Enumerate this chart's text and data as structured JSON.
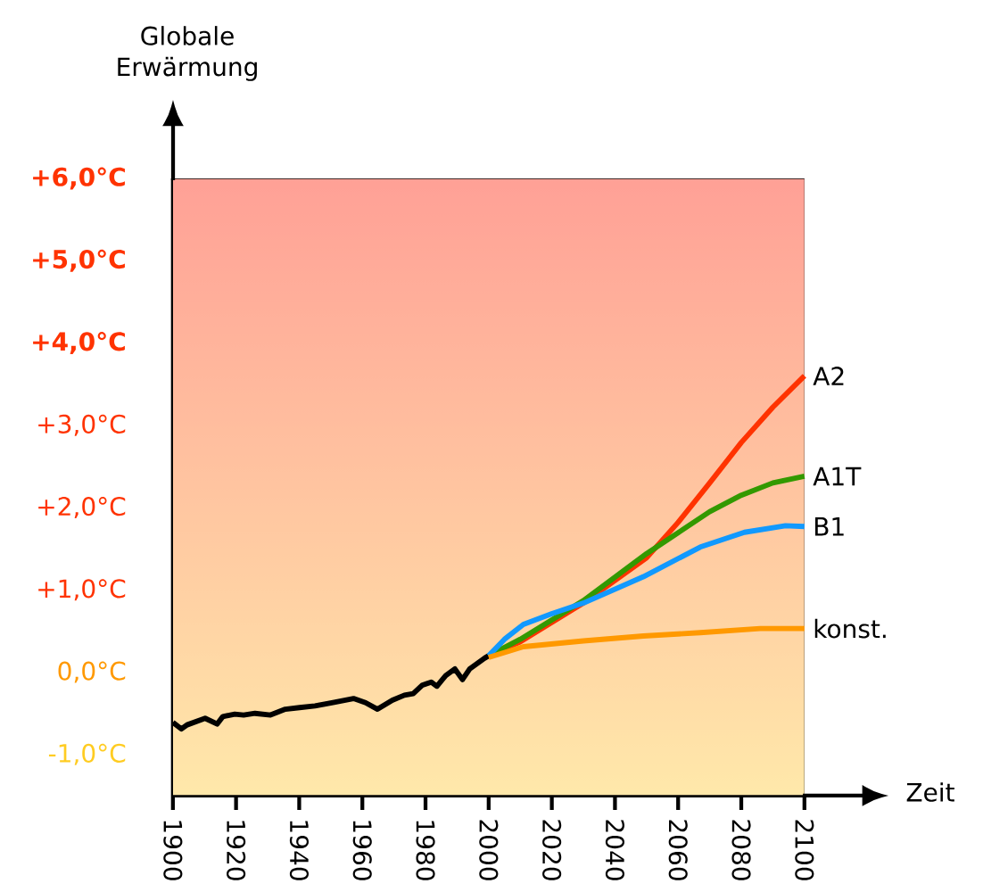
{
  "chart_data": {
    "type": "line",
    "xlabel": "Zeit",
    "ylabel": "Globale Erwärmung",
    "xlim": [
      1900,
      2100
    ],
    "ylim": [
      -1.5,
      6
    ],
    "xticks": [
      1900,
      1920,
      1940,
      1960,
      1980,
      2000,
      2020,
      2040,
      2060,
      2080,
      2100
    ],
    "yticks": [
      {
        "value": -1,
        "label": "-1,0°C"
      },
      {
        "value": 0,
        "label": "0,0°C"
      },
      {
        "value": 1,
        "label": "+1,0°C"
      },
      {
        "value": 2,
        "label": "+2,0°C"
      },
      {
        "value": 3,
        "label": "+3,0°C"
      },
      {
        "value": 4,
        "label": "+4,0°C"
      },
      {
        "value": 5,
        "label": "+5,0°C"
      },
      {
        "value": 6,
        "label": "+6,0°C"
      }
    ],
    "bands": [
      {
        "axis": "y",
        "from": -1.5,
        "to": 6,
        "color": "#ffa096"
      }
    ],
    "series": [
      {
        "color": "#000000",
        "x": [
          1900,
          1902.7,
          1904.5,
          1910.2,
          1914,
          1915.8,
          1919.6,
          1922.4,
          1926,
          1930.9,
          1935.6,
          1940.1,
          1945,
          1950.7,
          1957.2,
          1961,
          1964.8,
          1969.5,
          1973.3,
          1976.1,
          1978.9,
          1981.8,
          1983.6,
          1986.4,
          1989.3,
          1991.7,
          1994,
          1998.7,
          2000
        ],
        "values": [
          -0.61,
          -0.69,
          -0.64,
          -0.56,
          -0.63,
          -0.54,
          -0.51,
          -0.52,
          -0.5,
          -0.52,
          -0.45,
          -0.43,
          -0.41,
          -0.37,
          -0.32,
          -0.37,
          -0.45,
          -0.34,
          -0.28,
          -0.26,
          -0.16,
          -0.12,
          -0.17,
          -0.04,
          0.04,
          -0.09,
          0.04,
          0.17,
          0.2
        ]
      },
      {
        "name": "A2",
        "color": "#ff3300",
        "x": [
          2000,
          2010,
          2030,
          2050,
          2060,
          2070,
          2080,
          2090,
          2100
        ],
        "values": [
          0.2,
          0.37,
          0.84,
          1.39,
          1.82,
          2.3,
          2.79,
          3.22,
          3.6
        ]
      },
      {
        "name": "A1T",
        "color": "#339900",
        "x": [
          2000,
          2010,
          2030,
          2050,
          2070,
          2080,
          2090,
          2100
        ],
        "values": [
          0.2,
          0.4,
          0.87,
          1.44,
          1.95,
          2.15,
          2.3,
          2.38
        ]
      },
      {
        "name": "B1",
        "color": "#1199ff",
        "x": [
          2000,
          2005,
          2011,
          2020,
          2030,
          2049,
          2067,
          2081,
          2094,
          2100
        ],
        "values": [
          0.2,
          0.4,
          0.58,
          0.71,
          0.84,
          1.16,
          1.52,
          1.7,
          1.78,
          1.77
        ]
      },
      {
        "name": "konst.",
        "color": "#ff9900",
        "x": [
          2000,
          2011,
          2030,
          2049,
          2067,
          2086,
          2100
        ],
        "values": [
          0.18,
          0.31,
          0.38,
          0.44,
          0.48,
          0.53,
          0.53
        ]
      }
    ]
  }
}
